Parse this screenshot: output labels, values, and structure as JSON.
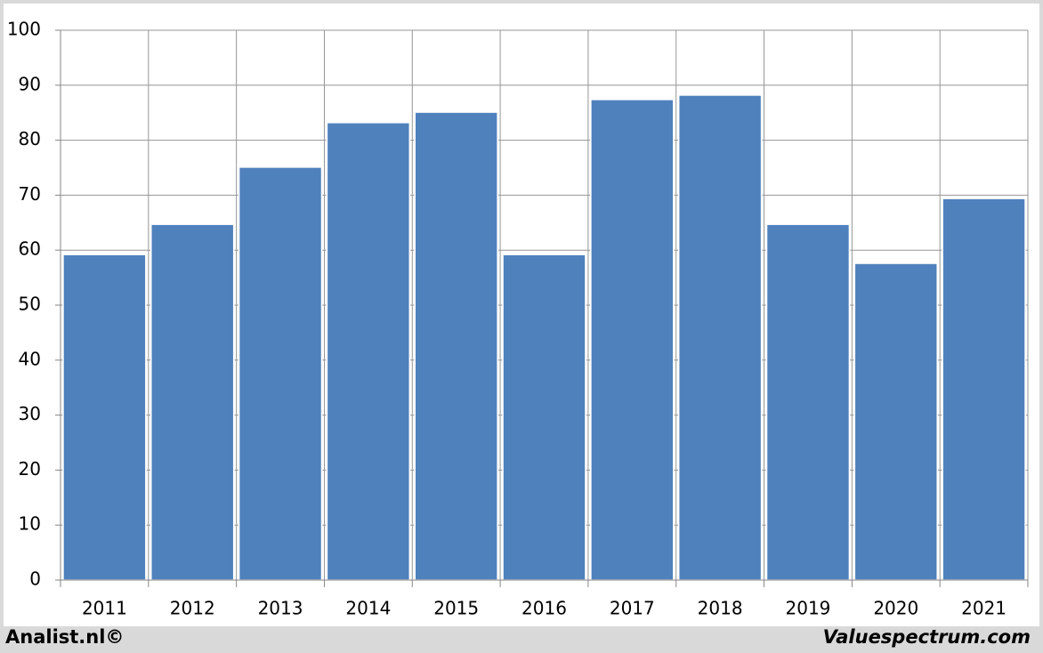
{
  "chart_data": {
    "type": "bar",
    "categories": [
      "2011",
      "2012",
      "2013",
      "2014",
      "2015",
      "2016",
      "2017",
      "2018",
      "2019",
      "2020",
      "2021"
    ],
    "values": [
      59.2,
      64.7,
      75.1,
      83.2,
      85.1,
      59.2,
      87.4,
      88.2,
      64.7,
      57.6,
      69.4
    ],
    "color": "#4f81bd",
    "ylim": [
      0,
      100
    ],
    "yticks": [
      0,
      10,
      20,
      30,
      40,
      50,
      60,
      70,
      80,
      90,
      100
    ],
    "grid": true,
    "footer_left": "Analist.nl©",
    "footer_right": "Valuespectrum.com"
  }
}
